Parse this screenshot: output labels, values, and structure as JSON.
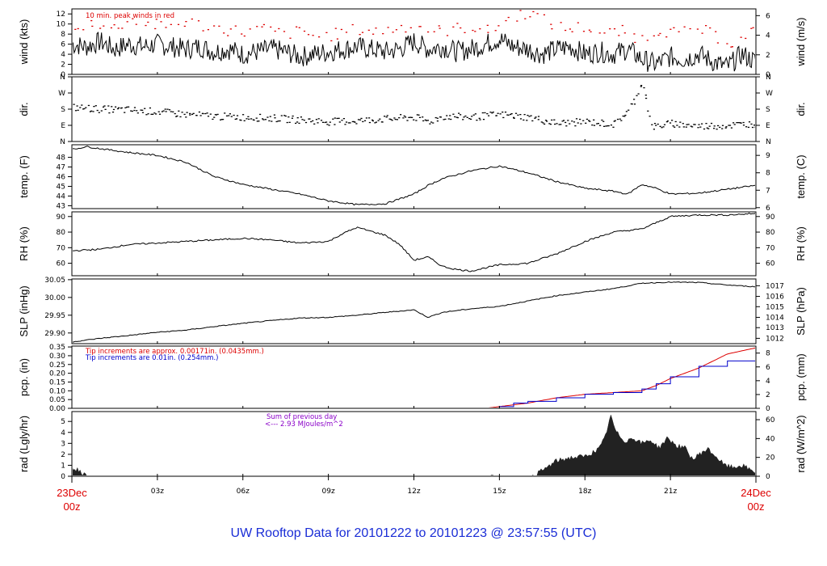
{
  "title": "UW Rooftop Data for 20101222  to  20101223 @ 23:57:55  (UTC)",
  "chart_data": {
    "type": "line",
    "x_axis": {
      "ticks": [
        "03z",
        "06z",
        "09z",
        "12z",
        "15z",
        "18z",
        "21z"
      ],
      "start": [
        "23Dec",
        "00z"
      ],
      "end": [
        "24Dec",
        "00z"
      ],
      "range_hours": [
        0,
        24
      ]
    },
    "panels": [
      {
        "id": "wind",
        "ylabel_left": "wind (kts)",
        "ylabel_right": "wind (m/s)",
        "ylim": [
          0,
          13
        ],
        "yticks": [
          0,
          2,
          4,
          6,
          8,
          10,
          12
        ],
        "right_ticks": [
          "0",
          "2",
          "4",
          "6"
        ],
        "right_values": [
          0,
          3.888,
          7.776,
          11.664
        ],
        "annotations": [
          {
            "text": "10 min. peak winds in red",
            "color": "#dd0000"
          }
        ],
        "series": [
          {
            "color": "#000000",
            "style": "line",
            "x": [
              0,
              0.5,
              1,
              1.5,
              2,
              2.5,
              3,
              3.5,
              4,
              4.5,
              5,
              5.5,
              6,
              6.5,
              7,
              7.5,
              8,
              8.5,
              9,
              9.5,
              10,
              10.5,
              11,
              11.5,
              12,
              12.5,
              13,
              13.5,
              14,
              14.5,
              15,
              15.5,
              16,
              16.5,
              17,
              17.5,
              18,
              18.5,
              19,
              19.5,
              20,
              20.5,
              21,
              21.5,
              22,
              22.5,
              23,
              23.5,
              24
            ],
            "y": [
              6,
              5.5,
              6.5,
              5,
              6,
              5.5,
              6,
              5.5,
              5,
              5.5,
              4.5,
              5,
              4,
              4.5,
              5,
              4.5,
              3.5,
              4,
              4.5,
              5,
              5.5,
              5,
              4.5,
              5,
              6.5,
              5,
              5.5,
              4.5,
              5,
              6,
              7,
              5.5,
              5,
              4,
              5,
              5.5,
              4,
              4.5,
              4,
              5,
              3,
              2,
              3.5,
              3,
              4,
              2.5,
              1.5,
              4,
              2.5
            ]
          },
          {
            "color": "#dd0000",
            "style": "points",
            "x": [
              0.2,
              0.8,
              1.4,
              2,
              2.6,
              3.3,
              4,
              4.7,
              5.3,
              6,
              6.7,
              7.4,
              8,
              8.6,
              9.3,
              10,
              10.6,
              11.2,
              12,
              12.7,
              13.4,
              14,
              14.6,
              15.3,
              16,
              16.6,
              17.3,
              18,
              18.6,
              19.3,
              20,
              20.6,
              21.3,
              22,
              22.6,
              23.3,
              23.8
            ],
            "y": [
              9.5,
              10.5,
              9,
              11,
              10,
              9.5,
              10.5,
              9.5,
              9,
              8.5,
              9,
              8,
              8.5,
              7.5,
              8,
              9,
              8.5,
              9,
              10,
              8.5,
              9,
              9.5,
              8.5,
              11,
              12.5,
              10.5,
              9,
              9.5,
              8,
              8.5,
              7,
              9,
              8,
              9,
              7.5,
              6,
              8.5
            ]
          }
        ]
      },
      {
        "id": "dir",
        "ylabel_left": "dir.",
        "ylabel_right": "dir.",
        "ylim": [
          0,
          360
        ],
        "yticks": [
          0,
          90,
          180,
          270,
          360
        ],
        "ytick_labels": [
          "N",
          "E",
          "S",
          "W",
          "N"
        ],
        "series": [
          {
            "color": "#000000",
            "style": "points",
            "x": [
              0,
              1,
              2,
              3,
              4,
              5,
              6,
              7,
              8,
              9,
              10,
              11,
              12,
              12.5,
              13,
              14,
              15,
              16,
              17,
              18,
              19,
              19.5,
              19.8,
              20,
              20.3,
              21,
              22,
              23,
              24
            ],
            "y": [
              190,
              180,
              175,
              165,
              150,
              140,
              135,
              130,
              120,
              110,
              115,
              125,
              135,
              110,
              140,
              135,
              150,
              135,
              100,
              110,
              95,
              170,
              250,
              350,
              80,
              100,
              85,
              90,
              100
            ]
          }
        ]
      },
      {
        "id": "temp",
        "ylabel_left": "temp. (F)",
        "ylabel_right": "temp. (C)",
        "ylim": [
          42.7,
          49.3
        ],
        "yticks": [
          43,
          44,
          45,
          46,
          47,
          48
        ],
        "right_ticks": [
          "6",
          "7",
          "8",
          "9"
        ],
        "right_values": [
          42.8,
          44.6,
          46.4,
          48.2
        ],
        "series": [
          {
            "color": "#000000",
            "style": "line",
            "x": [
              0,
              0.5,
              1,
              2,
              3,
              4,
              5,
              6,
              7,
              8,
              9,
              10,
              11,
              12,
              12.5,
              13,
              14,
              15,
              16,
              17,
              18,
              19,
              19.5,
              20,
              20.5,
              21,
              22,
              23,
              24
            ],
            "y": [
              48.8,
              49.1,
              48.9,
              48.5,
              48.2,
              47.5,
              46,
              45.2,
              44.7,
              44.2,
              43.5,
              43.1,
              43.2,
              44.2,
              45.1,
              45.8,
              46.6,
              47.1,
              46.4,
              45.5,
              44.8,
              44.5,
              44.2,
              45.2,
              44.8,
              44.2,
              44.3,
              44.7,
              45.1
            ]
          }
        ]
      },
      {
        "id": "rh",
        "ylabel_left": "RH (%)",
        "ylabel_right": "RH (%)",
        "ylim": [
          52,
          93
        ],
        "yticks": [
          60,
          70,
          80,
          90
        ],
        "right_ticks": [
          "60",
          "70",
          "80",
          "90"
        ],
        "right_values": [
          60,
          70,
          80,
          90
        ],
        "series": [
          {
            "color": "#000000",
            "style": "line",
            "x": [
              0,
              1,
              2,
              3,
              4,
              5,
              6,
              7,
              8,
              9,
              9.5,
              10,
              11,
              11.5,
              12,
              12.5,
              13,
              13.5,
              14,
              14.5,
              15,
              16,
              17,
              18,
              19,
              20,
              21,
              22,
              23,
              24
            ],
            "y": [
              68,
              69,
              72,
              73,
              74,
              75,
              76,
              75,
              73,
              74,
              79,
              83,
              78,
              72,
              62,
              64,
              58,
              56,
              55,
              57,
              59,
              60,
              66,
              74,
              80,
              82,
              90,
              91,
              91,
              92
            ]
          }
        ]
      },
      {
        "id": "slp",
        "ylabel_left": "SLP (inHg)",
        "ylabel_right": "SLP (hPa)",
        "ylim": [
          29.87,
          30.052
        ],
        "yticks": [
          29.9,
          29.95,
          30.0,
          30.05
        ],
        "ytick_labels": [
          "29.90",
          "29.95",
          "30.00",
          "30.05"
        ],
        "right_ticks": [
          "1012",
          "1013",
          "1014",
          "1015",
          "1016",
          "1017"
        ],
        "right_values": [
          29.885,
          29.915,
          29.944,
          29.974,
          30.003,
          30.033
        ],
        "series": [
          {
            "color": "#000000",
            "style": "line",
            "x": [
              0,
              1,
              2,
              3,
              4,
              5,
              6,
              7,
              8,
              9,
              10,
              11,
              12,
              12.5,
              13,
              14,
              15,
              16,
              17,
              18,
              19,
              20,
              21,
              22,
              23,
              24
            ],
            "y": [
              29.875,
              29.885,
              29.893,
              29.902,
              29.908,
              29.918,
              29.927,
              29.935,
              29.942,
              29.944,
              29.95,
              29.958,
              29.965,
              29.944,
              29.958,
              29.968,
              29.975,
              29.99,
              30.005,
              30.015,
              30.025,
              30.04,
              30.043,
              30.042,
              30.035,
              30.03
            ]
          }
        ]
      },
      {
        "id": "pcp",
        "ylabel_left": "pcp. (in)",
        "ylabel_right": "pcp. (mm)",
        "ylim": [
          0,
          0.355
        ],
        "yticks": [
          0,
          0.05,
          0.1,
          0.15,
          0.2,
          0.25,
          0.3,
          0.35
        ],
        "ytick_labels": [
          "0.00",
          "0.05",
          "0.10",
          "0.15",
          "0.20",
          "0.25",
          "0.30",
          "0.35"
        ],
        "right_ticks": [
          "0",
          "2",
          "4",
          "6",
          "8"
        ],
        "right_values": [
          0,
          0.0787,
          0.1575,
          0.2362,
          0.315
        ],
        "annotations": [
          {
            "text": "Tip increments are approx. 0.00171in. (0.0435mm.)",
            "color": "#dd0000"
          },
          {
            "text": "Tip increments are 0.01in. (0.254mm.)",
            "color": "#0000cc"
          }
        ],
        "series": [
          {
            "color": "#dd0000",
            "style": "line",
            "x": [
              0,
              14.5,
              15,
              16,
              17,
              18,
              19,
              20,
              20.5,
              21,
              22,
              23,
              24
            ],
            "y": [
              0,
              0,
              0.01,
              0.03,
              0.06,
              0.08,
              0.09,
              0.1,
              0.13,
              0.17,
              0.23,
              0.31,
              0.345
            ]
          },
          {
            "color": "#0000cc",
            "style": "step",
            "x": [
              0,
              14.5,
              15,
              15.5,
              16,
              17,
              18,
              19,
              20,
              20.5,
              21,
              22,
              23,
              24
            ],
            "y": [
              0,
              0,
              0.01,
              0.03,
              0.04,
              0.06,
              0.08,
              0.09,
              0.11,
              0.14,
              0.18,
              0.24,
              0.27,
              0.29
            ]
          }
        ]
      },
      {
        "id": "rad",
        "ylabel_left": "rad (Lgly/hr)",
        "ylabel_right": "rad (W/m^2)",
        "ylim": [
          0,
          5.9
        ],
        "yticks": [
          0,
          1,
          2,
          3,
          4,
          5
        ],
        "right_ticks": [
          "0",
          "20",
          "40",
          "60"
        ],
        "right_values": [
          0,
          1.72,
          3.44,
          5.16
        ],
        "annotations": [
          {
            "text": "Sum of previous day",
            "color": "#8a00c8"
          },
          {
            "text": "<--- 2.93 MJoules/m^2",
            "color": "#8a00c8"
          }
        ],
        "series": [
          {
            "color": "#222222",
            "style": "area",
            "x": [
              0,
              0.3,
              0.5,
              16.1,
              16.5,
              17,
              17.5,
              18,
              18.5,
              18.7,
              18.9,
              19.1,
              19.4,
              19.7,
              20,
              20.3,
              20.6,
              20.9,
              21.2,
              21.5,
              21.8,
              22,
              22.3,
              22.6,
              22.9,
              23.2,
              23.5,
              23.8,
              24
            ],
            "y": [
              0.8,
              0.5,
              0,
              0,
              0.5,
              1.4,
              1.7,
              1.8,
              2.5,
              3.5,
              5.5,
              4,
              3.2,
              3.5,
              3,
              3.3,
              2.6,
              3.5,
              2.8,
              2.6,
              1.5,
              2,
              2.5,
              1.8,
              1,
              0.8,
              1,
              0.6,
              0.4
            ]
          }
        ]
      }
    ]
  }
}
